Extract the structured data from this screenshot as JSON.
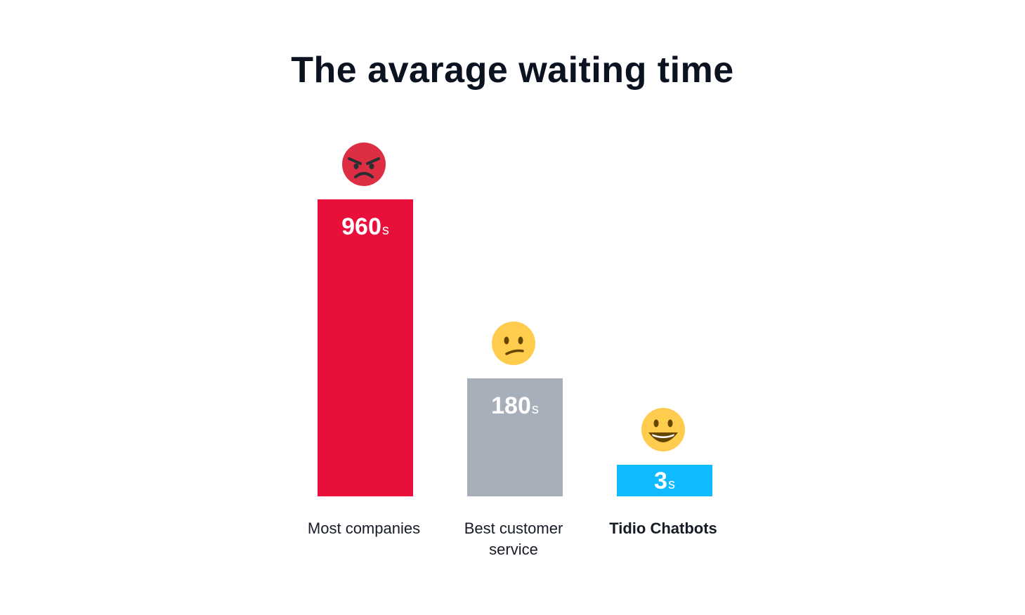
{
  "chart_data": {
    "type": "bar",
    "title": "The avarage waiting time",
    "categories": [
      "Most companies",
      "Best customer service",
      "Tidio Chatbots"
    ],
    "category_lines": [
      [
        "Most companies"
      ],
      [
        "Best customer",
        "service"
      ],
      [
        "Tidio Chatbots"
      ]
    ],
    "values": [
      960,
      180,
      3
    ],
    "unit": "s",
    "value_labels": [
      "960",
      "180",
      "3"
    ],
    "colors": [
      "#e8103a",
      "#a7afba",
      "#0fbaff"
    ],
    "emojis": [
      "angry-face-icon",
      "confused-face-icon",
      "grinning-face-icon"
    ],
    "bold_category": "Tidio Chatbots",
    "xlabel": "",
    "ylabel": "",
    "grid": false,
    "legend": "none"
  }
}
